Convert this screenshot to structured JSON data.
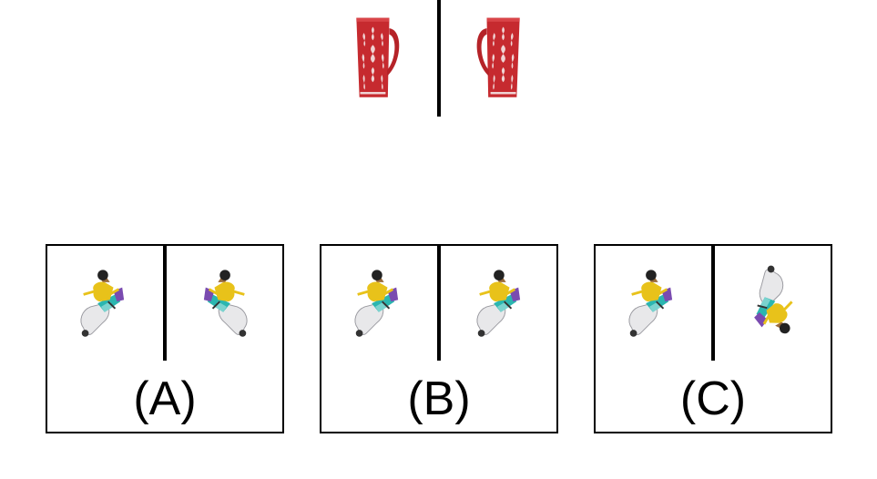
{
  "reference": {
    "left_image": "red-mug-icon",
    "right_image": "red-mug-icon"
  },
  "options": [
    {
      "label": "(A)",
      "left_image": "scooter-rider-icon",
      "right_image": "scooter-rider-icon"
    },
    {
      "label": "(B)",
      "left_image": "scooter-rider-icon",
      "right_image": "scooter-rider-icon"
    },
    {
      "label": "(C)",
      "left_image": "scooter-rider-icon",
      "right_image": "scooter-rider-icon"
    }
  ],
  "colors": {
    "mug_red": "#c62a2f",
    "mug_pattern": "#f3e3e3",
    "rider_yellow": "#e8c21a",
    "scooter_teal": "#2bb6b0",
    "scooter_white": "#e8e8ea"
  }
}
